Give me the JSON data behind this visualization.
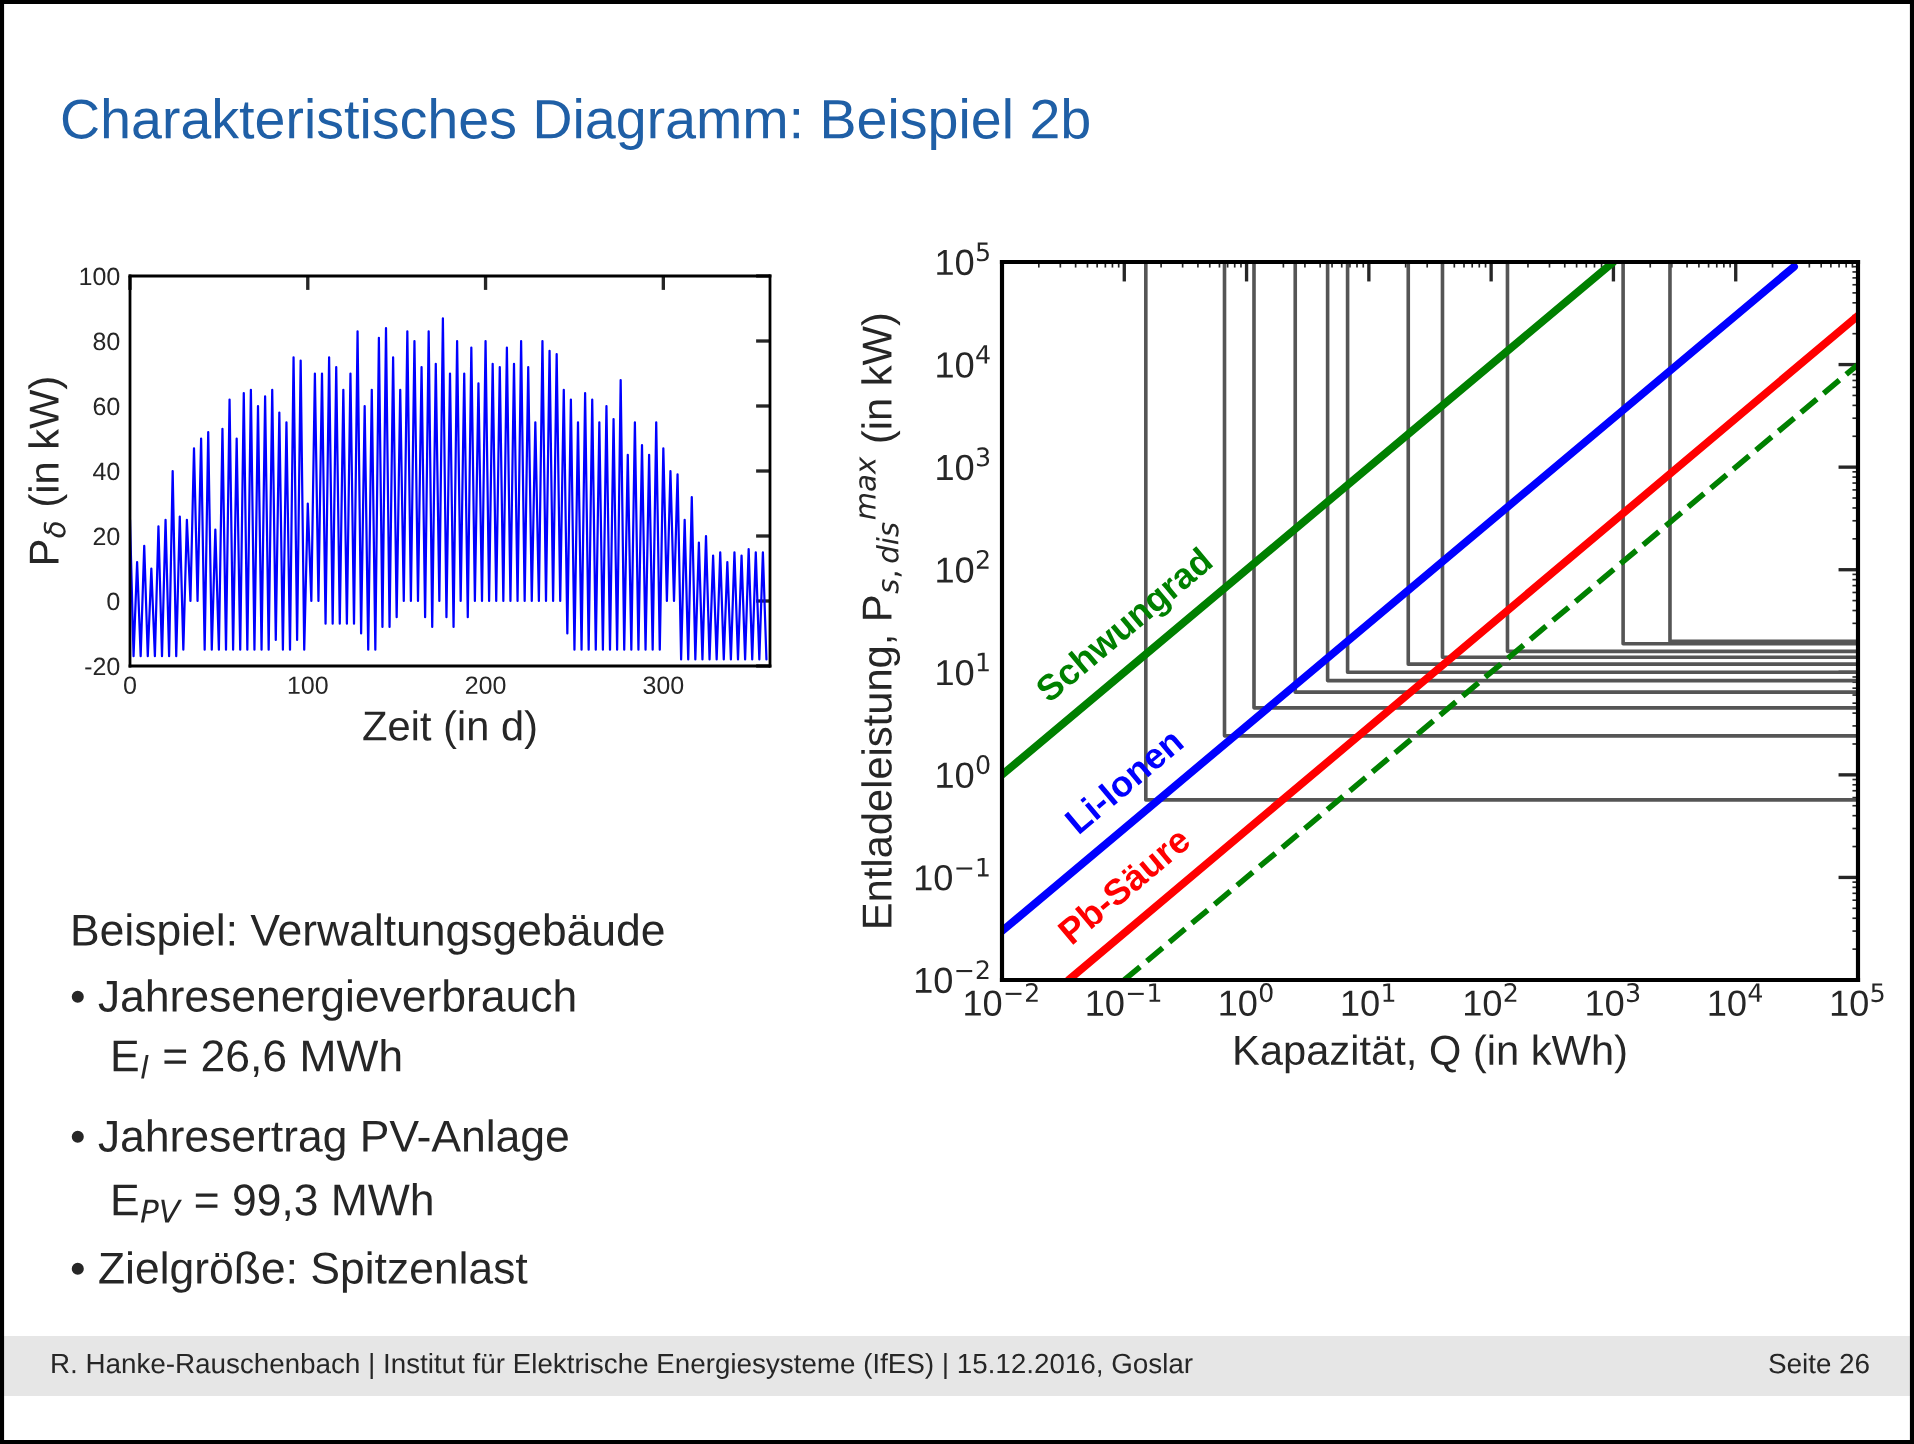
{
  "chart_data": [
    {
      "type": "other",
      "title": "Charakteristisches Diagramm: Beispiel 2b",
      "annotations": [
        "Beispiel: Verwaltungsgebäude",
        "• Jahresenergieverbrauch",
        "E$_{l}$ = 26,6 MWh",
        "• Jahresertrag PV-Anlage",
        "E$_{PV}$ = 99,3 MWh",
        "• Zielgröße: Spitzenlast",
        "R. Hanke-Rauschenbach | Institut für Elektrische Energiesysteme (IfES) | 15.12.2016, Goslar",
        "Seite 26"
      ]
    },
    {
      "type": "line",
      "xlabel": "Zeit (in d)",
      "ylabel": "P$_{δ}$ (in kW)",
      "xlim": [
        0,
        360
      ],
      "ylim": [
        -20,
        100
      ],
      "xticks": [
        0,
        100,
        200,
        300
      ],
      "yticks": [
        -20,
        0,
        20,
        40,
        60,
        80,
        100
      ],
      "grid": false,
      "legend": false,
      "series": [
        {
          "color": "#0000ff",
          "x": [
            0,
            2,
            4,
            6,
            8,
            10,
            12,
            14,
            16,
            18,
            20,
            22,
            24,
            26,
            28,
            30,
            32,
            34,
            36,
            38,
            40,
            42,
            44,
            46,
            48,
            50,
            52,
            54,
            56,
            58,
            60,
            62,
            64,
            66,
            68,
            70,
            72,
            74,
            76,
            78,
            80,
            82,
            84,
            86,
            88,
            90,
            92,
            94,
            96,
            98,
            100,
            102,
            104,
            106,
            108,
            110,
            112,
            114,
            116,
            118,
            120,
            122,
            124,
            126,
            128,
            130,
            132,
            134,
            136,
            138,
            140,
            142,
            144,
            146,
            148,
            150,
            152,
            154,
            156,
            158,
            160,
            162,
            164,
            166,
            168,
            170,
            172,
            174,
            176,
            178,
            180,
            182,
            184,
            186,
            188,
            190,
            192,
            194,
            196,
            198,
            200,
            202,
            204,
            206,
            208,
            210,
            212,
            214,
            216,
            218,
            220,
            222,
            224,
            226,
            228,
            230,
            232,
            234,
            236,
            238,
            240,
            242,
            244,
            246,
            248,
            250,
            252,
            254,
            256,
            258,
            260,
            262,
            264,
            266,
            268,
            270,
            272,
            274,
            276,
            278,
            280,
            282,
            284,
            286,
            288,
            290,
            292,
            294,
            296,
            298,
            300,
            302,
            304,
            306,
            308,
            310,
            312,
            314,
            316,
            318,
            320,
            322,
            324,
            326,
            328,
            330,
            332,
            334,
            336,
            338,
            340,
            342,
            344,
            346,
            348,
            350,
            352,
            354,
            356,
            358
          ],
          "values": [
            25,
            -17,
            12,
            -17,
            17,
            -17,
            10,
            -17,
            23,
            -17,
            25,
            -17,
            40,
            -17,
            26,
            -15,
            25,
            0,
            47,
            0,
            50,
            -15,
            52,
            -15,
            22,
            -15,
            53,
            -15,
            62,
            -15,
            50,
            -15,
            64,
            -15,
            65,
            -15,
            60,
            -15,
            63,
            -15,
            65,
            -12,
            58,
            -15,
            55,
            -15,
            75,
            -12,
            74,
            -15,
            30,
            0,
            70,
            0,
            70,
            -7,
            75,
            -7,
            72,
            -7,
            65,
            -7,
            70,
            -7,
            83,
            -10,
            60,
            -15,
            65,
            -15,
            81,
            -8,
            84,
            -8,
            75,
            -5,
            65,
            0,
            83,
            0,
            80,
            0,
            72,
            -5,
            83,
            -8,
            73,
            0,
            87,
            -5,
            70,
            -8,
            80,
            0,
            70,
            -5,
            78,
            0,
            67,
            0,
            80,
            0,
            73,
            0,
            72,
            0,
            78,
            0,
            73,
            0,
            80,
            0,
            72,
            0,
            55,
            0,
            80,
            0,
            77,
            0,
            76,
            0,
            65,
            -10,
            62,
            -15,
            55,
            -15,
            64,
            -15,
            62,
            -15,
            55,
            -15,
            60,
            -15,
            56,
            -15,
            68,
            -15,
            45,
            -15,
            55,
            -15,
            48,
            -15,
            45,
            -15,
            55,
            -15,
            47,
            0,
            40,
            0,
            39,
            -18,
            25,
            -18,
            32,
            -18,
            18,
            -18,
            20,
            -18,
            14,
            -18,
            15,
            -18,
            12,
            -18,
            15,
            -18,
            14,
            -18,
            16,
            -18,
            15,
            -18,
            15,
            -18
          ]
        }
      ]
    },
    {
      "type": "line",
      "xlabel": "Kapazität, Q (in kWh)",
      "ylabel": "Entladeleistung, P$_{s,dis}$$^{max}$ (in kW)",
      "log": "xy",
      "grid": false,
      "legend": false,
      "xlim": [
        0.01,
        100000
      ],
      "ylim": [
        0.01,
        100000
      ],
      "xticks": [
        {
          "value": 0.01,
          "label": "10$^{−2}$"
        },
        {
          "value": 0.1,
          "label": "10$^{−1}$"
        },
        {
          "value": 1,
          "label": "10$^{0}$"
        },
        {
          "value": 10,
          "label": "10$^{1}$"
        },
        {
          "value": 100,
          "label": "10$^{2}$"
        },
        {
          "value": 1000,
          "label": "10$^{3}$"
        },
        {
          "value": 10000,
          "label": "10$^{4}$"
        },
        {
          "value": 100000,
          "label": "10$^{5}$"
        }
      ],
      "yticks": [
        {
          "value": 0.01,
          "label": "10$^{−2}$"
        },
        {
          "value": 0.1,
          "label": "10$^{−1}$"
        },
        {
          "value": 1,
          "label": "10$^{0}$"
        },
        {
          "value": 10,
          "label": "10$^{1}$"
        },
        {
          "value": 100,
          "label": "10$^{2}$"
        },
        {
          "value": 1000,
          "label": "10$^{3}$"
        },
        {
          "value": 10000,
          "label": "10$^{4}$"
        },
        {
          "value": 100000,
          "label": "10$^{5}$"
        }
      ],
      "series": [
        {
          "color": "#555555",
          "x": [
            0.15,
            0.15,
            100000
          ],
          "values": [
            100000,
            0.57,
            0.57
          ]
        },
        {
          "color": "#555555",
          "x": [
            0.66,
            0.66,
            100000
          ],
          "values": [
            100000,
            2.4,
            2.4
          ]
        },
        {
          "color": "#555555",
          "x": [
            1.15,
            1.15,
            100000
          ],
          "values": [
            100000,
            4.5,
            4.5
          ]
        },
        {
          "color": "#555555",
          "x": [
            2.5,
            2.5,
            100000
          ],
          "values": [
            100000,
            6.4,
            6.4
          ]
        },
        {
          "color": "#555555",
          "x": [
            4.6,
            4.6,
            100000
          ],
          "values": [
            100000,
            8.3,
            8.3
          ]
        },
        {
          "color": "#555555",
          "x": [
            6.7,
            6.7,
            100000
          ],
          "values": [
            100000,
            10,
            10
          ]
        },
        {
          "color": "#555555",
          "x": [
            21,
            21,
            100000
          ],
          "values": [
            100000,
            12,
            12
          ]
        },
        {
          "color": "#555555",
          "x": [
            40,
            40,
            100000
          ],
          "values": [
            100000,
            14,
            14
          ]
        },
        {
          "color": "#555555",
          "x": [
            136,
            136,
            100000
          ],
          "values": [
            100000,
            16,
            16
          ]
        },
        {
          "color": "#555555",
          "x": [
            1200,
            1200,
            100000
          ],
          "values": [
            100000,
            19,
            19
          ]
        },
        {
          "color": "#555555",
          "x": [
            2900,
            2900,
            100000
          ],
          "values": [
            100000,
            20,
            20
          ]
        },
        {
          "name": "Schwungrad",
          "color": "#008000",
          "x": [
            0.01,
            1000
          ],
          "values": [
            1,
            100000
          ]
        },
        {
          "name": "Li-Ionen",
          "color": "#0000ff",
          "x": [
            0.01,
            30000
          ],
          "values": [
            0.03,
            90000
          ]
        },
        {
          "name": "Pb-Säure",
          "color": "#ff0000",
          "x": [
            0.035,
            100000
          ],
          "values": [
            0.01,
            30000
          ]
        },
        {
          "color": "#008000",
          "line_style": "dashed",
          "x": [
            0.1,
            100000
          ],
          "values": [
            0.01,
            10000
          ]
        }
      ]
    }
  ]
}
